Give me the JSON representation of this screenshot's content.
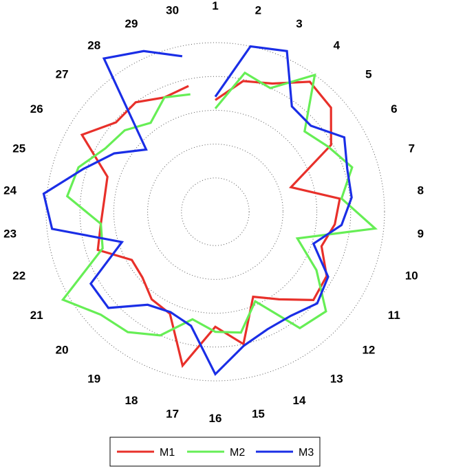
{
  "chart_data": {
    "type": "radar",
    "title": "",
    "categories": [
      "1",
      "2",
      "3",
      "4",
      "5",
      "6",
      "7",
      "8",
      "9",
      "10",
      "11",
      "12",
      "13",
      "14",
      "15",
      "16",
      "17",
      "18",
      "19",
      "20",
      "21",
      "22",
      "23",
      "24",
      "25",
      "26",
      "27",
      "28",
      "29",
      "30"
    ],
    "rlim": [
      0,
      1
    ],
    "rings": 5,
    "grid": true,
    "legend_position": "bottom",
    "series": [
      {
        "name": "M1",
        "color": "#e8302a",
        "values": [
          0.66,
          0.79,
          0.83,
          0.95,
          0.92,
          0.79,
          0.47,
          0.74,
          0.71,
          0.66,
          0.76,
          0.78,
          0.64,
          0.55,
          0.8,
          0.68,
          0.93,
          0.66,
          0.64,
          0.58,
          0.57,
          0.73,
          0.68,
          0.66,
          0.67,
          0.91,
          0.79,
          0.8,
          0.74,
          0.76
        ]
      },
      {
        "name": "M2",
        "color": "#66ee55",
        "values": [
          0.61,
          0.84,
          0.8,
          1.0,
          0.71,
          0.77,
          0.85,
          0.75,
          0.95,
          0.51,
          0.69,
          0.88,
          0.85,
          0.58,
          0.73,
          0.71,
          0.65,
          0.8,
          0.88,
          0.91,
          1.04,
          0.7,
          0.68,
          0.88,
          0.85,
          0.75,
          0.72,
          0.65,
          0.74,
          0.71
        ]
      },
      {
        "name": "M3",
        "color": "#1a2ee6",
        "values": [
          0.68,
          1.0,
          1.04,
          0.77,
          0.76,
          0.88,
          0.82,
          0.81,
          0.75,
          0.61,
          0.77,
          0.81,
          0.76,
          0.76,
          0.81,
          0.96,
          0.69,
          0.65,
          0.68,
          0.85,
          0.85,
          0.58,
          0.97,
          1.02,
          0.82,
          0.69,
          0.55,
          1.12,
          1.04,
          0.94
        ]
      }
    ]
  }
}
